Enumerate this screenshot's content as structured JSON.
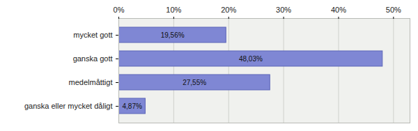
{
  "chart_data": {
    "type": "bar",
    "orientation": "horizontal",
    "categories": [
      "mycket gott",
      "ganska gott",
      "medelmåttigt",
      "ganska eller mycket dåligt"
    ],
    "values": [
      19.56,
      48.03,
      27.55,
      4.87
    ],
    "value_labels": [
      "19,56%",
      "48,03%",
      "27,55%",
      "4,87%"
    ],
    "data_labels": true,
    "color": "#7f87d4",
    "xlim": [
      0,
      53
    ],
    "xticks": [
      {
        "value": 0,
        "label": "0%"
      },
      {
        "value": 10,
        "label": "10%"
      },
      {
        "value": 20,
        "label": "20%"
      },
      {
        "value": 30,
        "label": "30%"
      },
      {
        "value": 40,
        "label": "40%"
      },
      {
        "value": 50,
        "label": "50%"
      }
    ],
    "grid": true
  }
}
